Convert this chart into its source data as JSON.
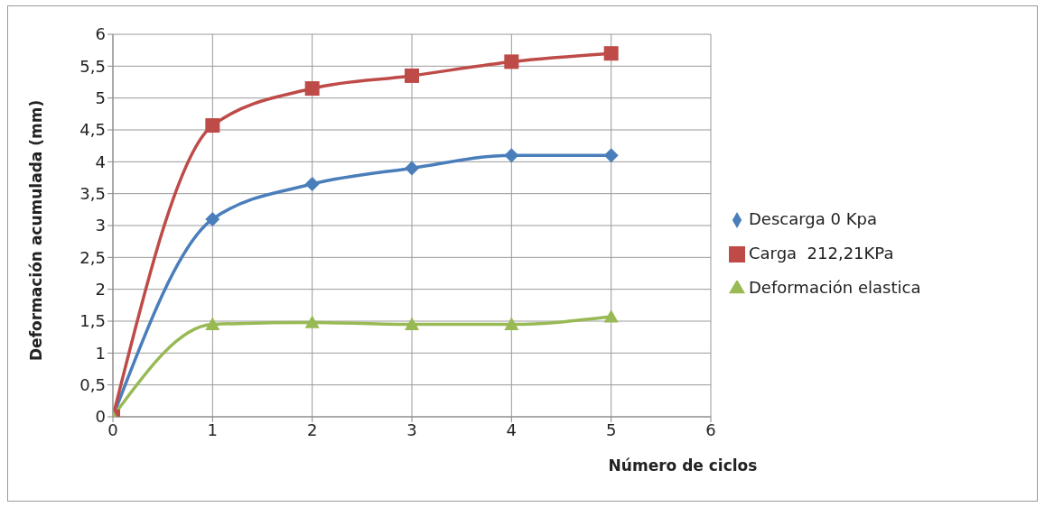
{
  "chart_data": {
    "type": "line",
    "xlabel": "Número de ciclos",
    "ylabel": "Deformación acumulada (mm)",
    "x": [
      0,
      1,
      2,
      3,
      4,
      5
    ],
    "series": [
      {
        "name": "Descarga 0 Kpa",
        "color": "#4a7ebb",
        "marker": "diamond",
        "values": [
          0,
          3.1,
          3.65,
          3.9,
          4.1,
          4.1
        ]
      },
      {
        "name": "Carga  212,21KPa",
        "color": "#be4b48",
        "marker": "square",
        "values": [
          0,
          4.57,
          5.15,
          5.35,
          5.57,
          5.7
        ]
      },
      {
        "name": "Deformación elastica",
        "color": "#98b954",
        "marker": "triangle",
        "values": [
          0,
          1.45,
          1.48,
          1.45,
          1.45,
          1.57
        ]
      }
    ],
    "xlim": [
      0,
      6
    ],
    "xticks": [
      0,
      1,
      2,
      3,
      4,
      5,
      6
    ],
    "ylim": [
      0,
      6
    ],
    "yticks": [
      0,
      {
        "value": 0.5,
        "label": "0,5"
      },
      1,
      {
        "value": 1.5,
        "label": "1,5"
      },
      2,
      {
        "value": 2.5,
        "label": "2,5"
      },
      3,
      {
        "value": 3.5,
        "label": "3,5"
      },
      4,
      {
        "value": 4.5,
        "label": "4,5"
      },
      5,
      {
        "value": 5.5,
        "label": "5,5"
      },
      6
    ],
    "grid": true,
    "legend": "right",
    "line_style": "solid"
  }
}
